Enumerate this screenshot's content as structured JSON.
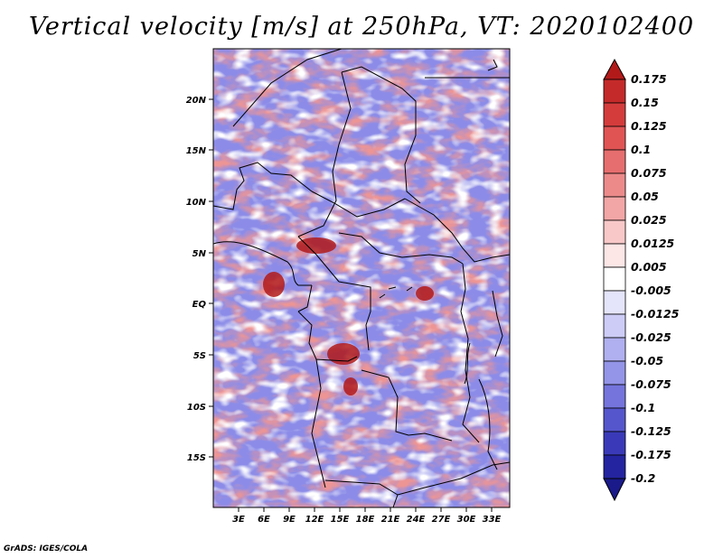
{
  "title": "Vertical velocity [m/s] at 250hPa, VT: 2020102400",
  "credit": "GrADS: IGES/COLA",
  "lat_labels": [
    "20N",
    "15N",
    "10N",
    "5N",
    "EQ",
    "5S",
    "10S",
    "15S"
  ],
  "lon_labels": [
    "3E",
    "6E",
    "9E",
    "12E",
    "15E",
    "18E",
    "21E",
    "24E",
    "27E",
    "30E",
    "33E"
  ],
  "colorbar": {
    "labels": [
      "0.175",
      "0.15",
      "0.125",
      "0.1",
      "0.075",
      "0.05",
      "0.025",
      "0.0125",
      "0.005",
      "-0.005",
      "-0.0125",
      "-0.025",
      "-0.05",
      "-0.075",
      "-0.1",
      "-0.125",
      "-0.175",
      "-0.2"
    ],
    "colors": [
      "#b21a1a",
      "#c42a2a",
      "#d43c3c",
      "#e05454",
      "#e66e6e",
      "#ec8a8a",
      "#f2a6a6",
      "#f8c8c8",
      "#fce6e6",
      "#ffffff",
      "#e4e4fb",
      "#ccccf6",
      "#b0b0f0",
      "#9494e8",
      "#7474dc",
      "#5656cc",
      "#3a3ab8",
      "#2424a0",
      "#1a1a8a"
    ]
  },
  "chart_data": {
    "type": "heatmap",
    "title": "Vertical velocity [m/s] at 250hPa, VT: 2020102400",
    "variable": "Vertical velocity",
    "units": "m/s",
    "level": "250hPa",
    "valid_time": "2020102400",
    "lon_range": [
      0,
      35
    ],
    "lat_range": [
      -20,
      25
    ],
    "xticks": [
      "3E",
      "6E",
      "9E",
      "12E",
      "15E",
      "18E",
      "21E",
      "24E",
      "27E",
      "30E",
      "33E"
    ],
    "yticks": [
      "20N",
      "15N",
      "10N",
      "5N",
      "EQ",
      "5S",
      "10S",
      "15S"
    ],
    "contour_levels": [
      -0.2,
      -0.175,
      -0.125,
      -0.1,
      -0.075,
      -0.05,
      -0.025,
      -0.0125,
      -0.005,
      0.005,
      0.0125,
      0.025,
      0.05,
      0.075,
      0.1,
      0.125,
      0.15,
      0.175
    ]
  }
}
